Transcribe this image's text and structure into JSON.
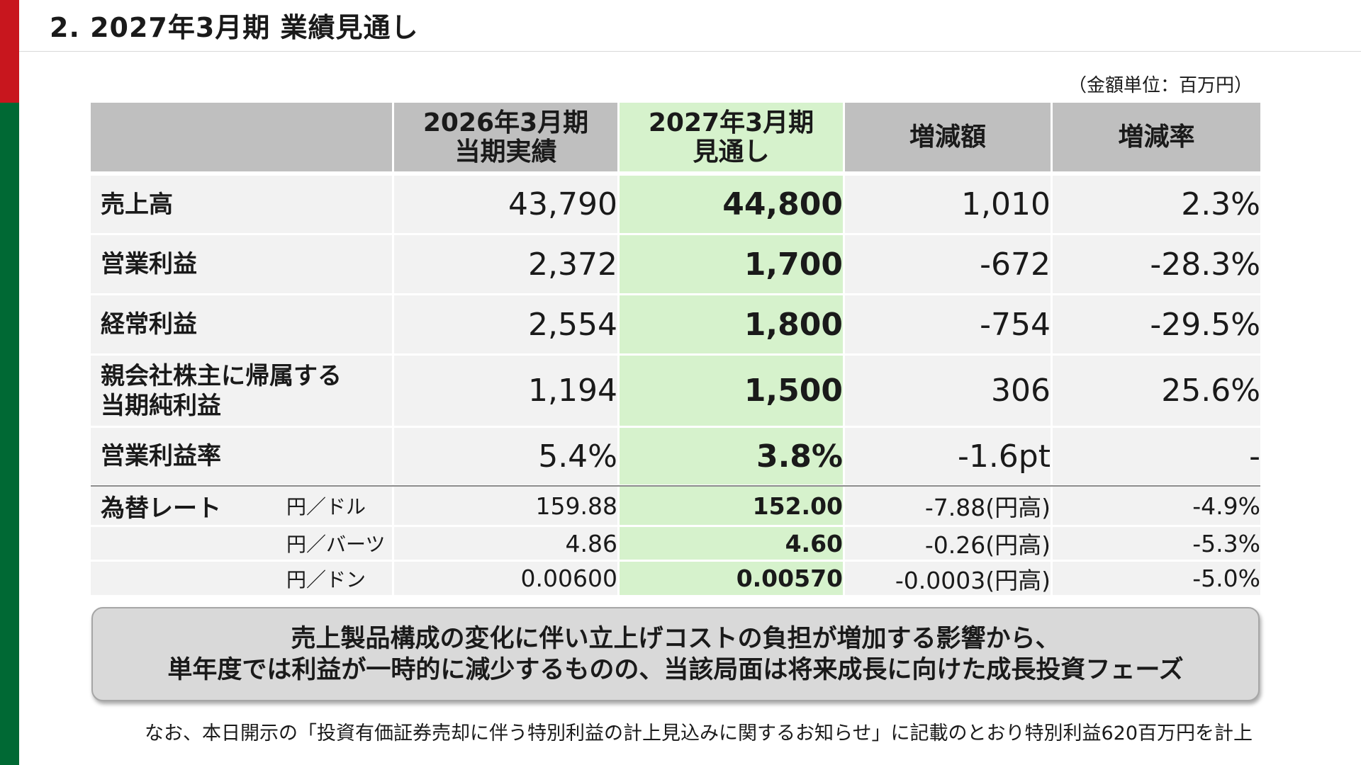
{
  "title": "2.  2027年3月期   業績見通し",
  "unit_note": "（金額単位：百万円）",
  "colors": {
    "accent_red": "#c8161e",
    "accent_green": "#006934",
    "forecast_highlight": "#d6f2cc",
    "header_gray": "#bfbfbf"
  },
  "table": {
    "headers": [
      "",
      "2026年3月期\n当期実績",
      "2027年3月期\n見通し",
      "増減額",
      "増減率"
    ],
    "rows": [
      {
        "label": "売上高",
        "actual": "43,790",
        "forecast": "44,800",
        "change": "1,010",
        "rate": "2.3%"
      },
      {
        "label": "営業利益",
        "actual": "2,372",
        "forecast": "1,700",
        "change": "-672",
        "rate": "-28.3%"
      },
      {
        "label": "経常利益",
        "actual": "2,554",
        "forecast": "1,800",
        "change": "-754",
        "rate": "-29.5%"
      },
      {
        "label": "親会社株主に帰属する\n当期純利益",
        "actual": "1,194",
        "forecast": "1,500",
        "change": "306",
        "rate": "25.6%"
      },
      {
        "label": "営業利益率",
        "actual": "5.4%",
        "forecast": "3.8%",
        "change": "-1.6pt",
        "rate": "-"
      }
    ],
    "fx": {
      "label": "為替レート",
      "rows": [
        {
          "pair": "円／ドル",
          "actual": "159.88",
          "forecast": "152.00",
          "change": "-7.88(円高)",
          "rate": "-4.9%"
        },
        {
          "pair": "円／バーツ",
          "actual": "4.86",
          "forecast": "4.60",
          "change": "-0.26(円高)",
          "rate": "-5.3%"
        },
        {
          "pair": "円／ドン",
          "actual": "0.00600",
          "forecast": "0.00570",
          "change": "-0.0003(円高)",
          "rate": "-5.0%"
        }
      ]
    }
  },
  "message": {
    "line1": "売上製品構成の変化に伴い立上げコストの負担が増加する影響から、",
    "line2": "単年度では利益が一時的に減少するものの、当該局面は将来成長に向けた成長投資フェーズ"
  },
  "footnote": "なお、本日開示の「投資有価証券売却に伴う特別利益の計上見込みに関するお知らせ」に記載のとおり特別利益620百万円を計上"
}
